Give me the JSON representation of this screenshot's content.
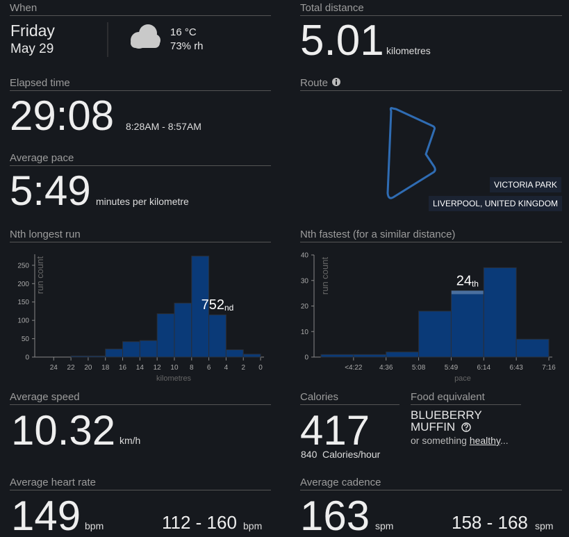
{
  "when": {
    "label": "When",
    "day": "Friday",
    "date": "May 29",
    "temperature": "16 °C",
    "humidity": "73% rh"
  },
  "total_distance": {
    "label": "Total distance",
    "value": "5.01",
    "unit": "kilometres"
  },
  "elapsed_time": {
    "label": "Elapsed time",
    "value": "29:08",
    "range": "8:28AM - 8:57AM"
  },
  "average_pace": {
    "label": "Average pace",
    "value": "5:49",
    "unit": "minutes per kilometre"
  },
  "route": {
    "label": "Route",
    "park": "VICTORIA PARK",
    "location": "LIVERPOOL, UNITED KINGDOM"
  },
  "average_speed": {
    "label": "Average speed",
    "value": "10.32",
    "unit": "km/h"
  },
  "calories": {
    "label": "Calories",
    "value": "417",
    "rate": "840",
    "rate_unit": "Calories/hour"
  },
  "food_equivalent": {
    "label": "Food equivalent",
    "food": "BLUEBERRY MUFFIN",
    "alt_prefix": "or something ",
    "alt_link": "healthy",
    "alt_suffix": "..."
  },
  "average_heart_rate": {
    "label": "Average heart rate",
    "value": "149",
    "unit": "bpm",
    "range": "112 - 160",
    "range_unit": "bpm"
  },
  "average_cadence": {
    "label": "Average cadence",
    "value": "163",
    "unit": "spm",
    "range": "158 - 168",
    "range_unit": "spm"
  },
  "chart_data": [
    {
      "type": "histogram",
      "title": "Nth longest run",
      "x_label": "kilometres",
      "y_label": "run count",
      "bins": [
        22,
        20,
        18,
        16,
        14,
        12,
        10,
        8,
        6,
        4,
        2,
        0
      ],
      "values": [
        3,
        3,
        22,
        42,
        45,
        118,
        147,
        275,
        115,
        20,
        8
      ],
      "color": "#0a3a78",
      "xlim": [
        26.2,
        -0.4
      ],
      "xticks": [
        24,
        22,
        20,
        18,
        16,
        14,
        12,
        10,
        8,
        6,
        4,
        2,
        0
      ],
      "ylim": [
        0,
        280
      ],
      "yticks": [
        0,
        50,
        100,
        150,
        200,
        250
      ],
      "annotation": "752",
      "annotation_suffix": "nd"
    },
    {
      "type": "histogram",
      "title": "Nth fastest (for a similar distance)",
      "x_label": "pace",
      "y_label": "run count",
      "bins": [
        null,
        "<4:22",
        "4:36",
        "5:08",
        "5:49",
        "6:14",
        "6:43",
        "7:16"
      ],
      "values": [
        1,
        1,
        2,
        18,
        26,
        35,
        7
      ],
      "color": "#0a3a78",
      "highlight_color": "#4a6f9f",
      "ylim": [
        0,
        40
      ],
      "yticks": [
        0,
        10,
        20,
        30,
        40
      ],
      "annotation": "24",
      "annotation_suffix": "th"
    }
  ]
}
